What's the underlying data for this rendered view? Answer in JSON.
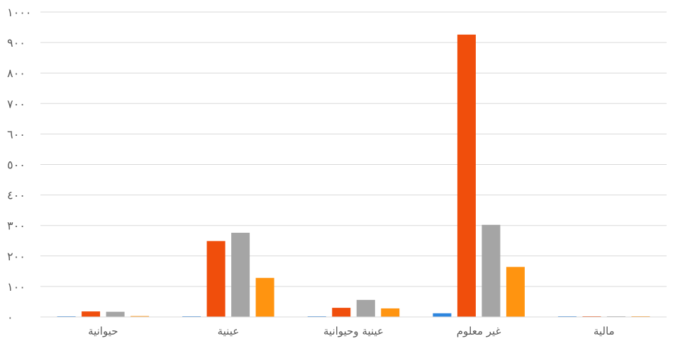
{
  "chart_data": {
    "type": "bar",
    "categories": [
      "حيوانية",
      "عينية",
      "عينية وحيوانية",
      "غير معلوم",
      "مالية"
    ],
    "series": [
      {
        "color": "#2E86DE",
        "values": [
          1,
          2,
          0,
          12,
          0
        ]
      },
      {
        "color": "#F04E0C",
        "values": [
          18,
          249,
          30,
          926,
          0
        ]
      },
      {
        "color": "#A5A5A5",
        "values": [
          17,
          276,
          56,
          302,
          1
        ]
      },
      {
        "color": "#FF9410",
        "values": [
          3,
          128,
          28,
          164,
          0
        ]
      }
    ],
    "ylim": [
      0,
      1000
    ],
    "yticks": [
      "٠",
      "١٠٠",
      "٢٠٠",
      "٣٠٠",
      "٤٠٠",
      "٥٠٠",
      "٦٠٠",
      "٧٠٠",
      "٨٠٠",
      "٩٠٠",
      "١٠٠٠"
    ],
    "grid": true,
    "legend": "none"
  }
}
